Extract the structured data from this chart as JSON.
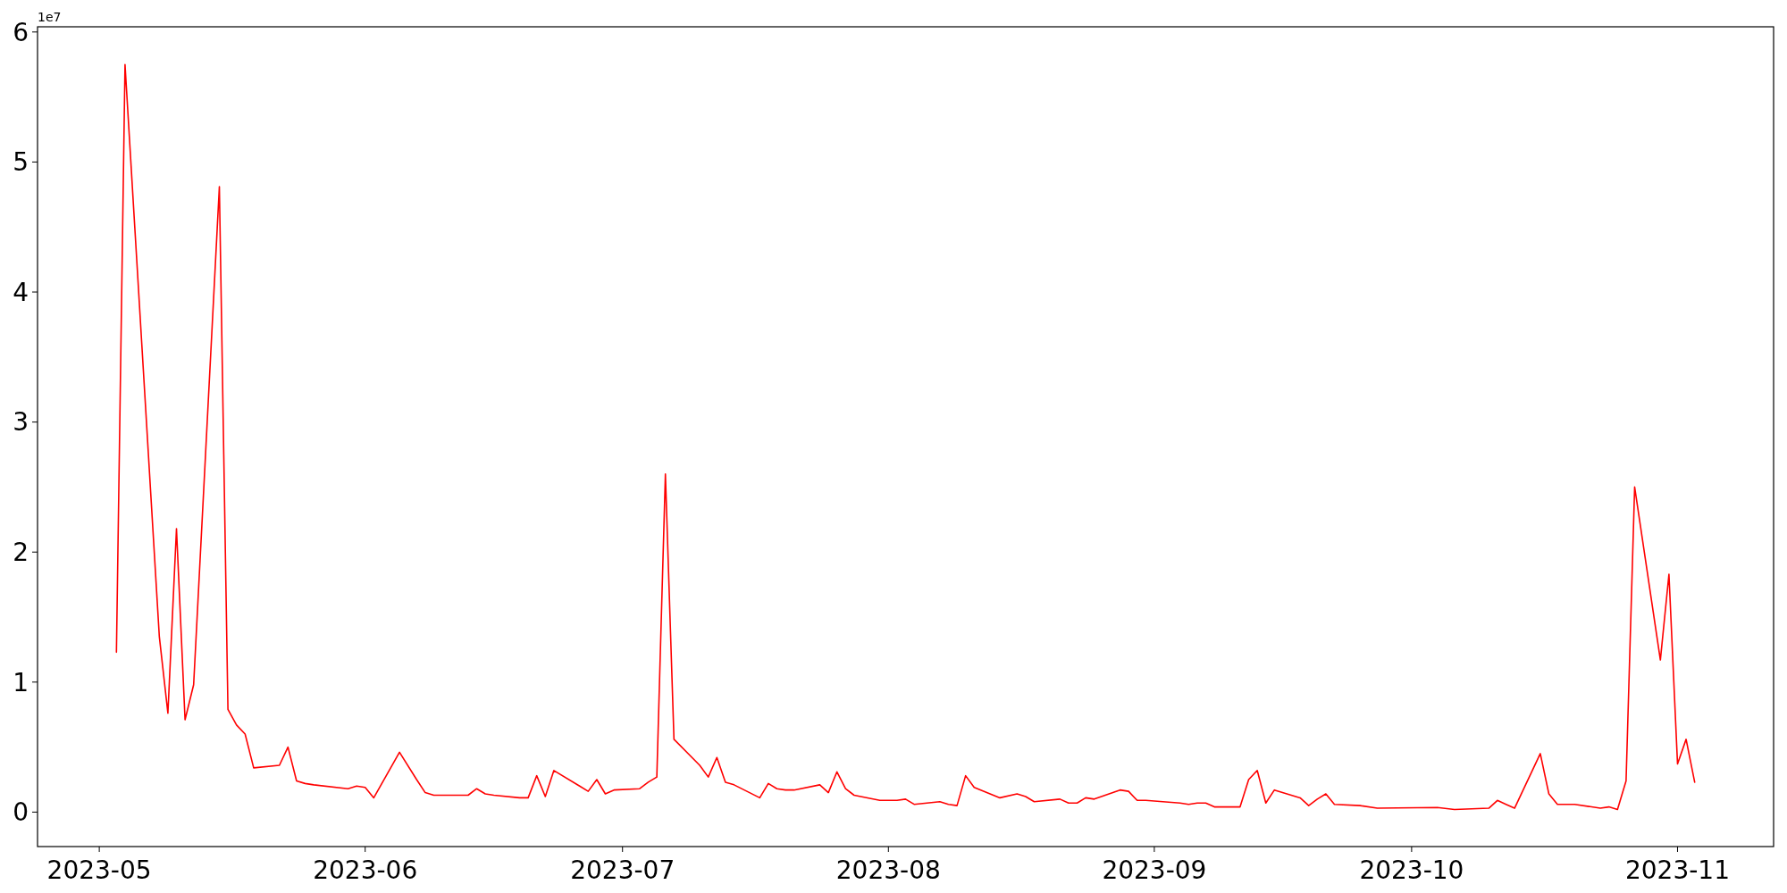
{
  "chart_data": {
    "type": "line",
    "color": "#ff0000",
    "line_style": "solid",
    "marker": "none",
    "grid": false,
    "annotations": [
      "1e7"
    ],
    "xlim": [
      "2023-04-23T19:12",
      "2023-11-12T04:48"
    ],
    "xticks": [
      {
        "value": "2023-05-01",
        "label": "2023-05"
      },
      {
        "value": "2023-06-01",
        "label": "2023-06"
      },
      {
        "value": "2023-07-01",
        "label": "2023-07"
      },
      {
        "value": "2023-08-01",
        "label": "2023-08"
      },
      {
        "value": "2023-09-01",
        "label": "2023-09"
      },
      {
        "value": "2023-10-01",
        "label": "2023-10"
      },
      {
        "value": "2023-11-01",
        "label": "2023-11"
      }
    ],
    "ylim": [
      -0.265,
      6.04
    ],
    "yticks": [
      0,
      1,
      2,
      3,
      4,
      5,
      6
    ],
    "x": [
      "2023-05-03",
      "2023-05-04",
      "2023-05-08",
      "2023-05-09",
      "2023-05-10",
      "2023-05-11",
      "2023-05-12",
      "2023-05-15",
      "2023-05-16",
      "2023-05-17",
      "2023-05-18",
      "2023-05-19",
      "2023-05-22",
      "2023-05-23",
      "2023-05-24",
      "2023-05-25",
      "2023-05-26",
      "2023-05-30",
      "2023-05-31",
      "2023-06-01",
      "2023-06-02",
      "2023-06-05",
      "2023-06-07",
      "2023-06-08",
      "2023-06-09",
      "2023-06-12",
      "2023-06-13",
      "2023-06-14",
      "2023-06-15",
      "2023-06-16",
      "2023-06-19",
      "2023-06-20",
      "2023-06-21",
      "2023-06-22",
      "2023-06-23",
      "2023-06-26",
      "2023-06-27",
      "2023-06-28",
      "2023-06-29",
      "2023-06-30",
      "2023-07-03",
      "2023-07-04",
      "2023-07-05",
      "2023-07-06",
      "2023-07-07",
      "2023-07-10",
      "2023-07-11",
      "2023-07-12",
      "2023-07-13",
      "2023-07-14",
      "2023-07-17",
      "2023-07-18",
      "2023-07-19",
      "2023-07-20",
      "2023-07-21",
      "2023-07-24",
      "2023-07-25",
      "2023-07-26",
      "2023-07-27",
      "2023-07-28",
      "2023-07-31",
      "2023-08-01",
      "2023-08-02",
      "2023-08-03",
      "2023-08-04",
      "2023-08-07",
      "2023-08-08",
      "2023-08-09",
      "2023-08-10",
      "2023-08-11",
      "2023-08-14",
      "2023-08-16",
      "2023-08-17",
      "2023-08-18",
      "2023-08-21",
      "2023-08-22",
      "2023-08-23",
      "2023-08-24",
      "2023-08-25",
      "2023-08-28",
      "2023-08-29",
      "2023-08-30",
      "2023-08-31",
      "2023-09-04",
      "2023-09-05",
      "2023-09-06",
      "2023-09-07",
      "2023-09-08",
      "2023-09-11",
      "2023-09-12",
      "2023-09-13",
      "2023-09-14",
      "2023-09-15",
      "2023-09-18",
      "2023-09-19",
      "2023-09-20",
      "2023-09-21",
      "2023-09-22",
      "2023-09-25",
      "2023-09-27",
      "2023-10-04",
      "2023-10-06",
      "2023-10-10",
      "2023-10-11",
      "2023-10-12",
      "2023-10-13",
      "2023-10-16",
      "2023-10-17",
      "2023-10-18",
      "2023-10-20",
      "2023-10-23",
      "2023-10-24",
      "2023-10-25",
      "2023-10-26",
      "2023-10-27",
      "2023-10-30",
      "2023-10-31",
      "2023-11-01",
      "2023-11-02",
      "2023-11-03"
    ],
    "values": [
      1.23,
      5.75,
      1.35,
      0.76,
      2.18,
      0.71,
      0.98,
      4.81,
      0.79,
      0.67,
      0.6,
      0.34,
      0.36,
      0.5,
      0.24,
      0.22,
      0.21,
      0.18,
      0.2,
      0.19,
      0.11,
      0.46,
      0.25,
      0.15,
      0.13,
      0.13,
      0.13,
      0.18,
      0.14,
      0.13,
      0.11,
      0.11,
      0.28,
      0.12,
      0.32,
      0.2,
      0.16,
      0.25,
      0.14,
      0.17,
      0.18,
      0.23,
      0.27,
      2.6,
      0.56,
      0.36,
      0.27,
      0.42,
      0.23,
      0.21,
      0.11,
      0.22,
      0.18,
      0.17,
      0.17,
      0.21,
      0.15,
      0.31,
      0.18,
      0.13,
      0.09,
      0.09,
      0.09,
      0.1,
      0.06,
      0.08,
      0.06,
      0.05,
      0.28,
      0.19,
      0.11,
      0.14,
      0.12,
      0.08,
      0.1,
      0.07,
      0.07,
      0.11,
      0.1,
      0.17,
      0.16,
      0.09,
      0.09,
      0.07,
      0.06,
      0.07,
      0.07,
      0.04,
      0.04,
      0.25,
      0.32,
      0.07,
      0.17,
      0.11,
      0.05,
      0.1,
      0.14,
      0.06,
      0.05,
      0.03,
      0.035,
      0.02,
      0.03,
      0.09,
      0.06,
      0.03,
      0.45,
      0.14,
      0.06,
      0.06,
      0.03,
      0.04,
      0.02,
      0.24,
      2.5,
      1.17,
      1.83,
      0.37,
      0.56,
      0.23
    ]
  }
}
